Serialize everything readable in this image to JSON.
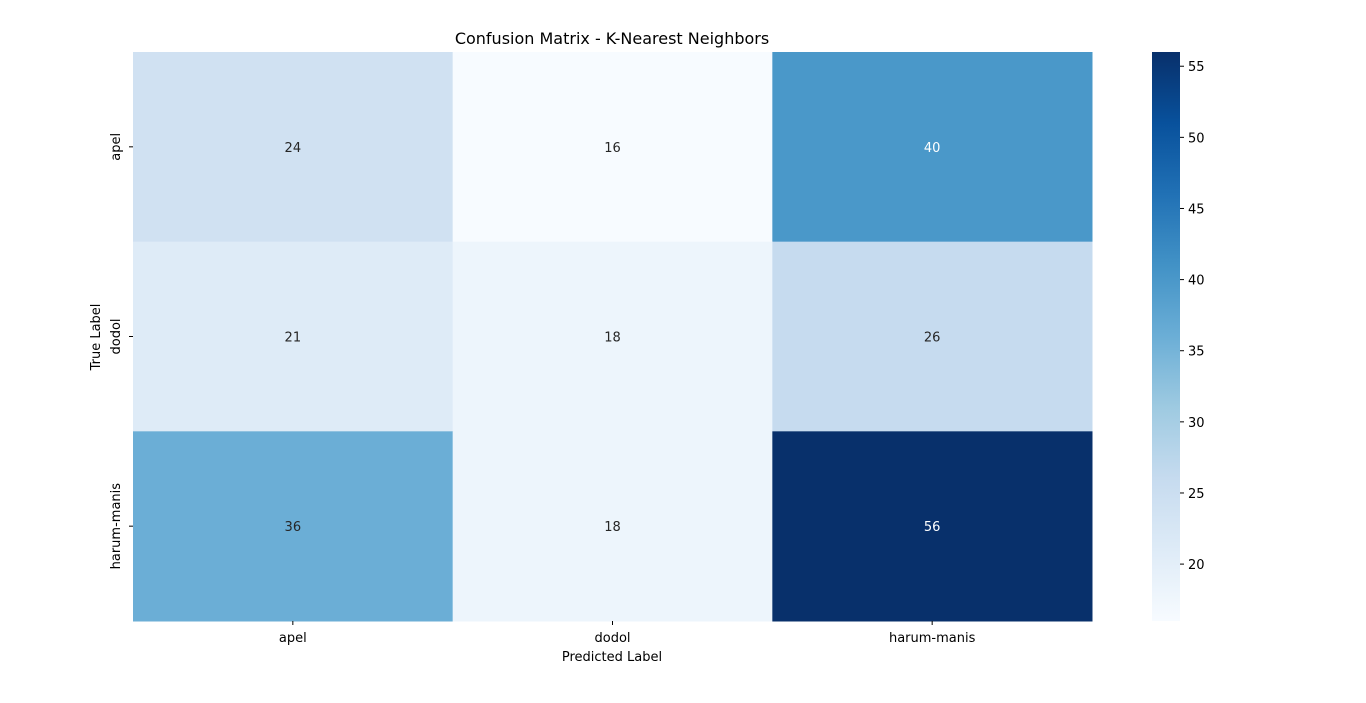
{
  "chart_data": {
    "type": "heatmap",
    "title": "Confusion Matrix - K-Nearest Neighbors",
    "xlabel": "Predicted Label",
    "ylabel": "True Label",
    "x_categories": [
      "apel",
      "dodol",
      "harum-manis"
    ],
    "y_categories": [
      "apel",
      "dodol",
      "harum-manis"
    ],
    "values": [
      [
        24,
        16,
        40
      ],
      [
        21,
        18,
        26
      ],
      [
        36,
        18,
        56
      ]
    ],
    "colormap": "Blues",
    "annotations": true,
    "colorbar": {
      "min": 16,
      "max": 56,
      "ticks": [
        20,
        25,
        30,
        35,
        40,
        45,
        50,
        55
      ]
    },
    "colors": {
      "light_text": "#ffffff",
      "dark_text": "#262626"
    }
  }
}
